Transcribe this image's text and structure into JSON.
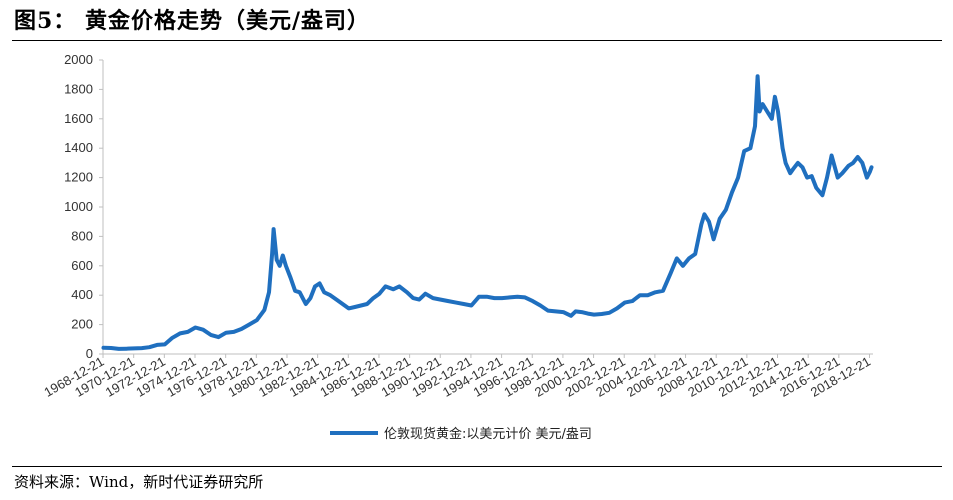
{
  "figure": {
    "title": "图5：  黄金价格走势（美元/盎司）",
    "source": "资料来源：Wind，新时代证券研究所"
  },
  "colors": {
    "series": "#1f6fbf",
    "axis": "#bfbfbf",
    "text": "#333333"
  },
  "chart_data": {
    "type": "line",
    "title": "",
    "xlabel": "",
    "ylabel": "",
    "ylim": [
      0,
      2000
    ],
    "yticks": [
      0,
      200,
      400,
      600,
      800,
      1000,
      1200,
      1400,
      1600,
      1800,
      2000
    ],
    "xlim": [
      1968.97,
      2019.2
    ],
    "xticks": [
      "1968-12-21",
      "1970-12-21",
      "1972-12-21",
      "1974-12-21",
      "1976-12-21",
      "1978-12-21",
      "1980-12-21",
      "1982-12-21",
      "1984-12-21",
      "1986-12-21",
      "1988-12-21",
      "1990-12-21",
      "1992-12-21",
      "1994-12-21",
      "1996-12-21",
      "1998-12-21",
      "2000-12-21",
      "2002-12-21",
      "2004-12-21",
      "2006-12-21",
      "2008-12-21",
      "2010-12-21",
      "2012-12-21",
      "2014-12-21",
      "2016-12-21",
      "2018-12-21"
    ],
    "grid": false,
    "legend_position": "bottom",
    "series": [
      {
        "name": "伦敦现货黄金:以美元计价 美元/盎司",
        "x": [
          1969.0,
          1969.5,
          1970.0,
          1970.5,
          1971.0,
          1971.5,
          1972.0,
          1972.5,
          1973.0,
          1973.5,
          1974.0,
          1974.5,
          1975.0,
          1975.5,
          1976.0,
          1976.5,
          1977.0,
          1977.5,
          1978.0,
          1978.5,
          1979.0,
          1979.5,
          1979.8,
          1980.0,
          1980.1,
          1980.3,
          1980.5,
          1980.7,
          1980.9,
          1981.2,
          1981.5,
          1981.8,
          1982.2,
          1982.5,
          1982.8,
          1983.1,
          1983.4,
          1983.8,
          1984.2,
          1984.6,
          1985.0,
          1985.4,
          1985.8,
          1986.2,
          1986.6,
          1987.0,
          1987.4,
          1987.9,
          1988.3,
          1988.8,
          1989.2,
          1989.6,
          1990.0,
          1990.5,
          1991.0,
          1991.5,
          1992.0,
          1992.5,
          1993.0,
          1993.5,
          1994.0,
          1994.5,
          1995.0,
          1995.5,
          1996.0,
          1996.5,
          1997.0,
          1997.5,
          1998.0,
          1998.5,
          1999.0,
          1999.5,
          1999.8,
          2000.2,
          2000.6,
          2001.0,
          2001.5,
          2002.0,
          2002.5,
          2003.0,
          2003.5,
          2004.0,
          2004.5,
          2005.0,
          2005.5,
          2006.0,
          2006.4,
          2006.8,
          2007.2,
          2007.6,
          2008.0,
          2008.2,
          2008.5,
          2008.8,
          2009.2,
          2009.6,
          2010.0,
          2010.4,
          2010.8,
          2011.2,
          2011.5,
          2011.67,
          2011.8,
          2012.0,
          2012.3,
          2012.6,
          2012.8,
          2013.0,
          2013.3,
          2013.5,
          2013.8,
          2014.0,
          2014.3,
          2014.6,
          2014.9,
          2015.2,
          2015.5,
          2015.9,
          2016.2,
          2016.5,
          2016.9,
          2017.2,
          2017.6,
          2017.9,
          2018.2,
          2018.5,
          2018.8,
          2019.0,
          2019.1
        ],
        "y": [
          42,
          41,
          35,
          36,
          38,
          40,
          46,
          62,
          65,
          110,
          140,
          150,
          180,
          165,
          130,
          115,
          145,
          150,
          170,
          200,
          230,
          300,
          420,
          680,
          850,
          640,
          600,
          670,
          600,
          520,
          430,
          420,
          340,
          380,
          460,
          480,
          420,
          400,
          370,
          340,
          310,
          320,
          330,
          340,
          380,
          410,
          460,
          440,
          460,
          420,
          380,
          370,
          410,
          380,
          370,
          360,
          350,
          340,
          330,
          390,
          390,
          380,
          380,
          385,
          390,
          385,
          360,
          330,
          295,
          290,
          285,
          260,
          290,
          285,
          275,
          268,
          272,
          280,
          310,
          350,
          360,
          400,
          400,
          420,
          430,
          550,
          650,
          600,
          650,
          680,
          880,
          950,
          900,
          780,
          920,
          980,
          1100,
          1200,
          1380,
          1400,
          1550,
          1890,
          1650,
          1700,
          1650,
          1600,
          1750,
          1650,
          1400,
          1300,
          1230,
          1260,
          1300,
          1270,
          1200,
          1210,
          1130,
          1080,
          1200,
          1350,
          1200,
          1230,
          1280,
          1300,
          1340,
          1300,
          1200,
          1240,
          1270
        ]
      }
    ]
  }
}
